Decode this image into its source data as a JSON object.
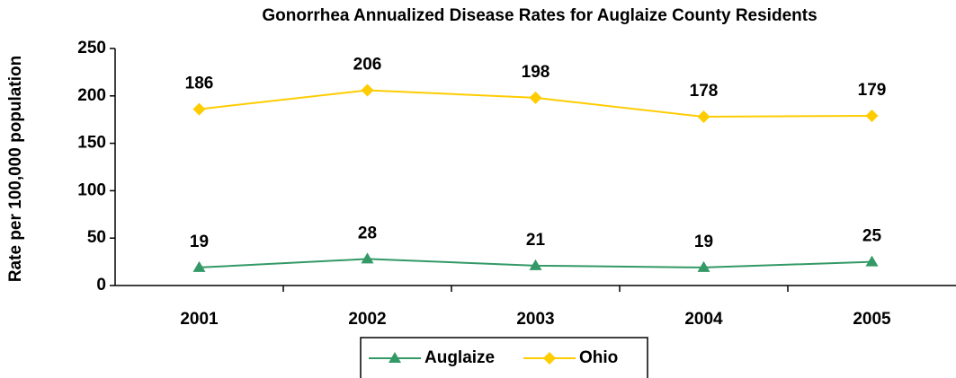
{
  "chart_data": {
    "type": "line",
    "title": "Gonorrhea Annualized Disease Rates for Auglaize County Residents",
    "y_label": "Rate per 100,000 population",
    "categories": [
      "2001",
      "2002",
      "2003",
      "2004",
      "2005"
    ],
    "series": [
      {
        "name": "Auglaize",
        "color": "#339966",
        "marker": "triangle",
        "values": [
          19,
          28,
          21,
          19,
          25
        ]
      },
      {
        "name": "Ohio",
        "color": "#FFCC00",
        "marker": "diamond",
        "values": [
          186,
          206,
          198,
          178,
          179
        ]
      }
    ],
    "ylim": [
      0,
      250
    ],
    "yticks": [
      0,
      50,
      100,
      150,
      200,
      250
    ],
    "grid": false,
    "legend": "bottom"
  }
}
